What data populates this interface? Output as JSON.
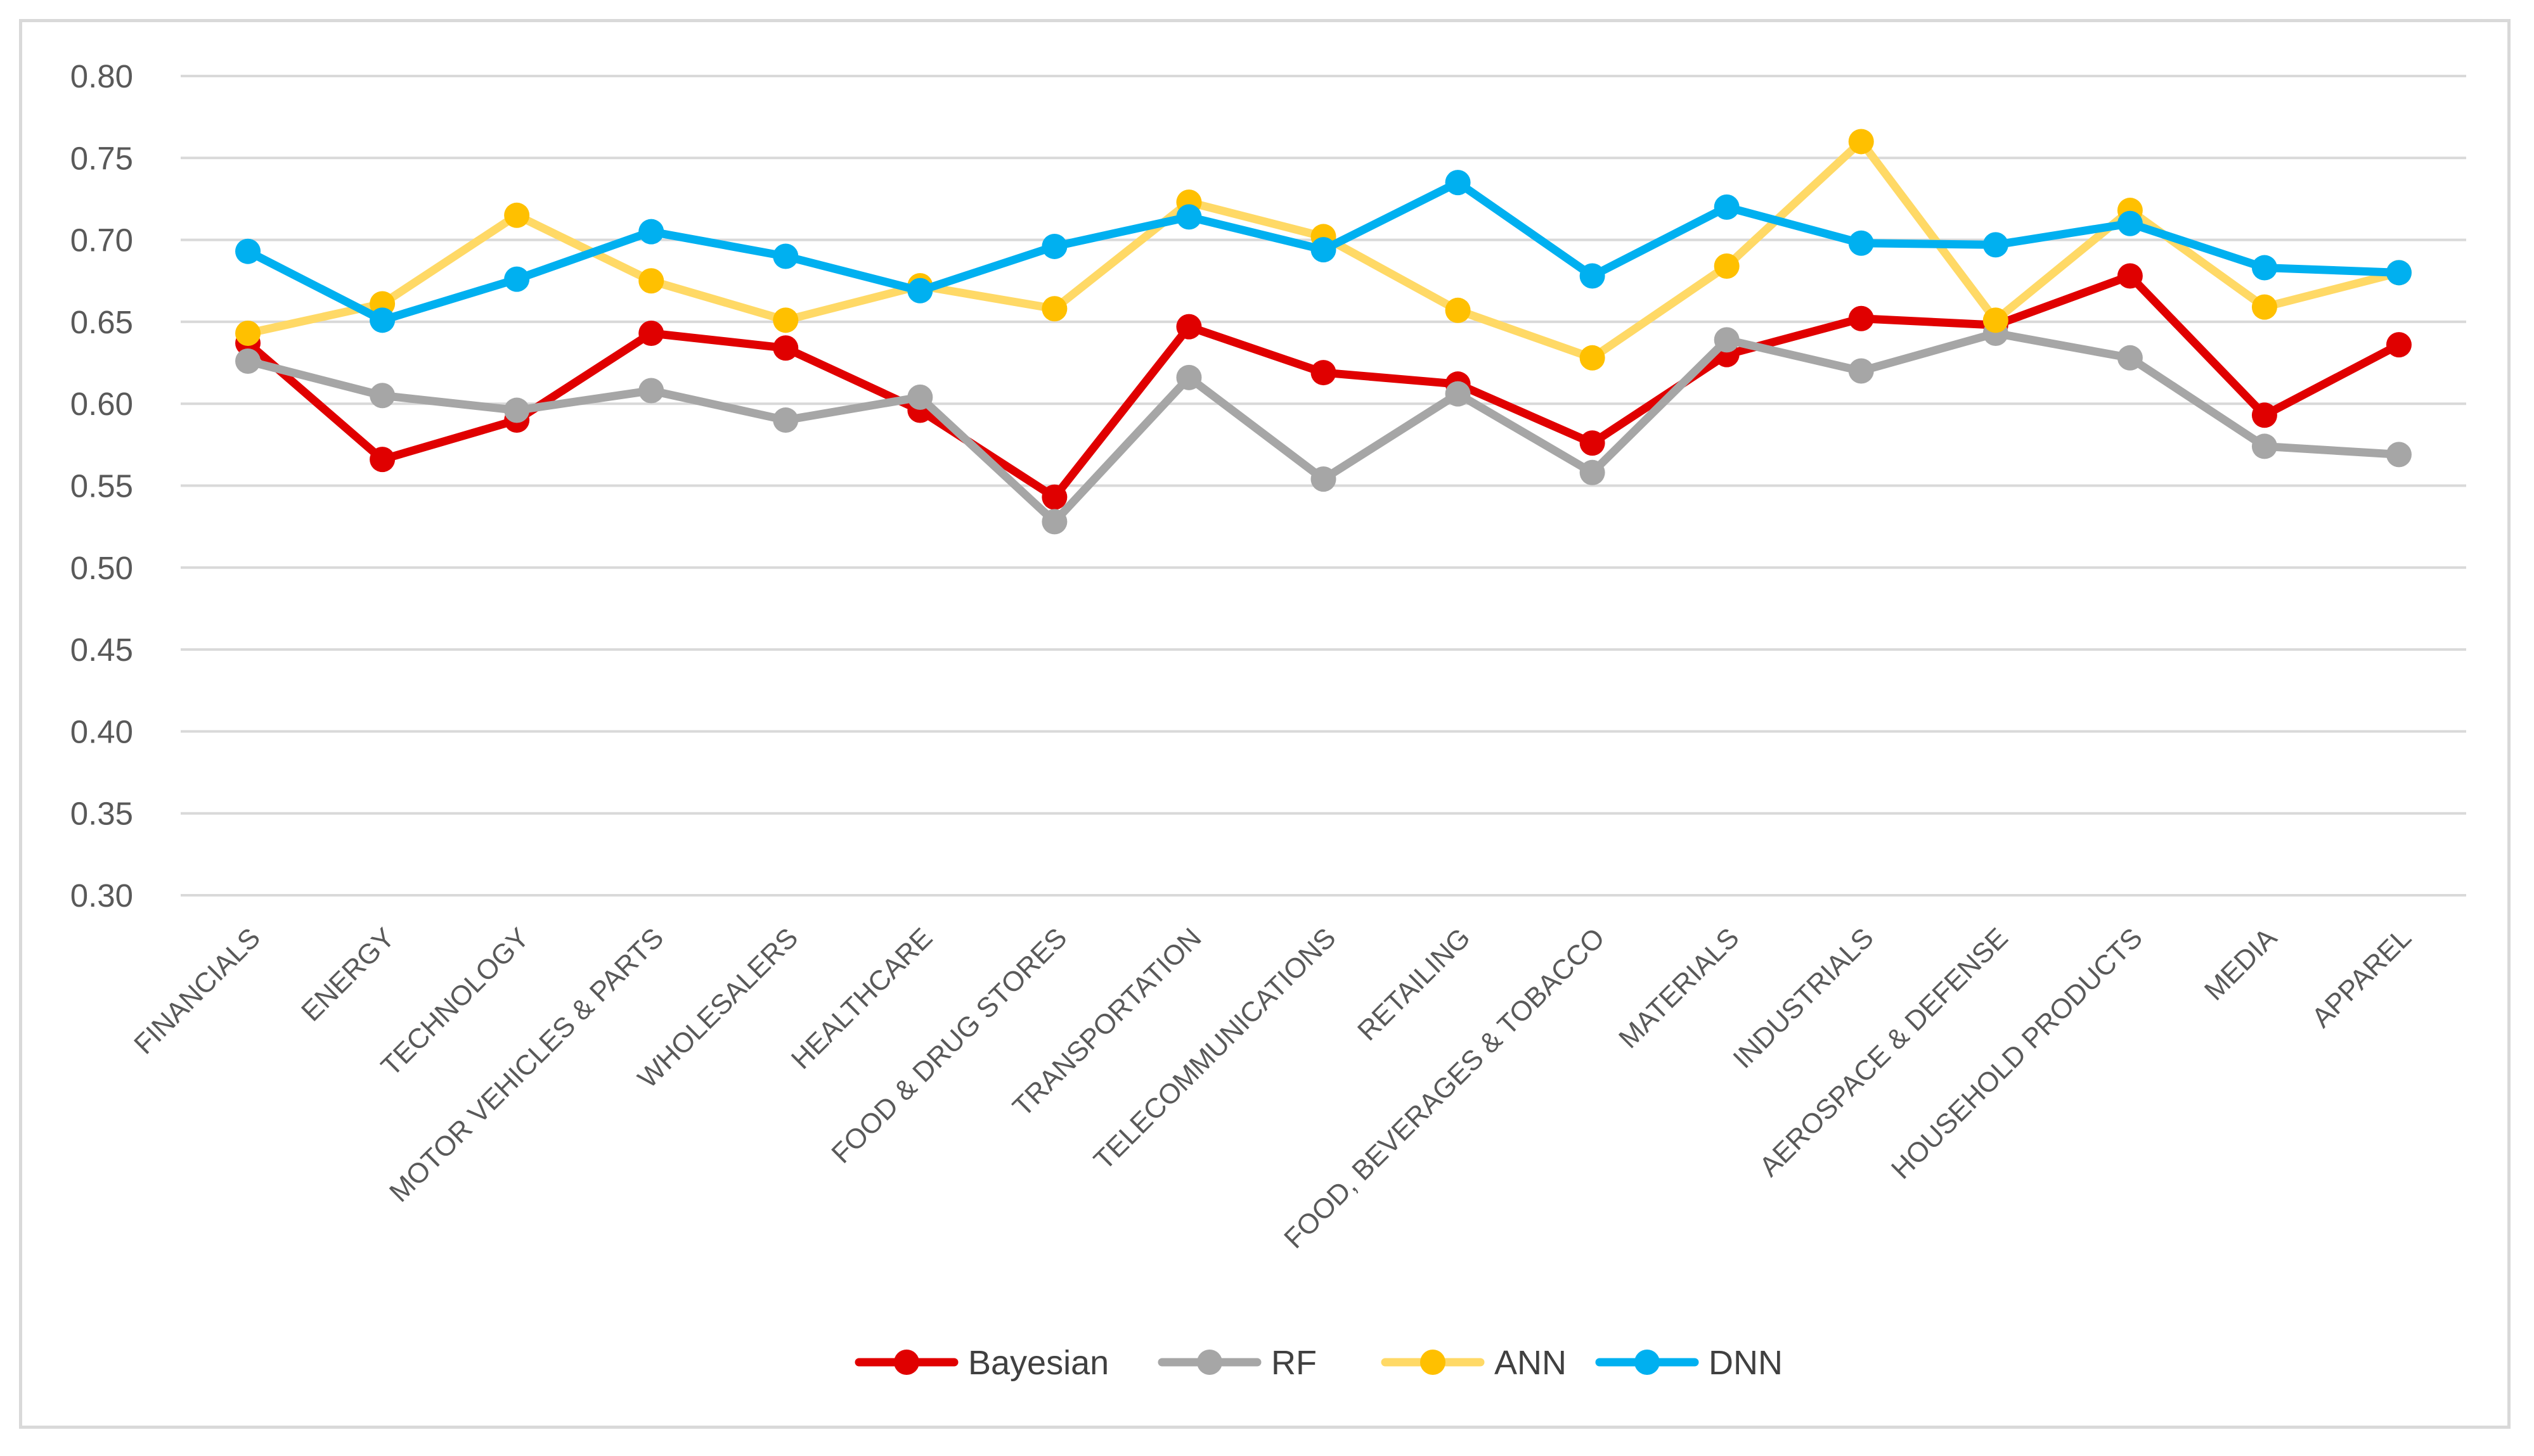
{
  "chart_data": {
    "type": "line",
    "title": "",
    "xlabel": "",
    "ylabel": "",
    "ylim": [
      0.3,
      0.8
    ],
    "yticks": [
      "0.30",
      "0.35",
      "0.40",
      "0.45",
      "0.50",
      "0.55",
      "0.60",
      "0.65",
      "0.70",
      "0.75",
      "0.80"
    ],
    "grid": true,
    "legend_position": "bottom",
    "categories": [
      "FINANCIALS",
      "ENERGY",
      "TECHNOLOGY",
      "MOTOR VEHICLES & PARTS",
      "WHOLESALERS",
      "HEALTHCARE",
      "FOOD & DRUG STORES",
      "TRANSPORTATION",
      "TELECOMMUNICATIONS",
      "RETAILING",
      "FOOD, BEVERAGES & TOBACCO",
      "MATERIALS",
      "INDUSTRIALS",
      "AEROSPACE & DEFENSE",
      "HOUSEHOLD PRODUCTS",
      "MEDIA",
      "APPAREL"
    ],
    "series": [
      {
        "name": "Bayesian",
        "color": "#e00000",
        "values": [
          0.637,
          0.566,
          0.59,
          0.643,
          0.634,
          0.596,
          0.543,
          0.647,
          0.619,
          0.612,
          0.576,
          0.63,
          0.652,
          0.648,
          0.678,
          0.593,
          0.636
        ]
      },
      {
        "name": "RF",
        "color": "#a6a6a6",
        "values": [
          0.626,
          0.605,
          0.596,
          0.608,
          0.59,
          0.604,
          0.528,
          0.616,
          0.554,
          0.606,
          0.558,
          0.639,
          0.62,
          0.643,
          0.628,
          0.574,
          0.569
        ]
      },
      {
        "name": "ANN",
        "color": "#ffd966",
        "marker_color": "#ffc000",
        "values": [
          0.643,
          0.661,
          0.715,
          0.675,
          0.651,
          0.672,
          0.658,
          0.723,
          0.702,
          0.657,
          0.628,
          0.684,
          0.76,
          0.651,
          0.718,
          0.659,
          0.68
        ]
      },
      {
        "name": "DNN",
        "color": "#00b0f0",
        "values": [
          0.693,
          0.651,
          0.676,
          0.705,
          0.69,
          0.669,
          0.696,
          0.714,
          0.694,
          0.735,
          0.678,
          0.72,
          0.698,
          0.697,
          0.71,
          0.683,
          0.68
        ]
      }
    ]
  }
}
